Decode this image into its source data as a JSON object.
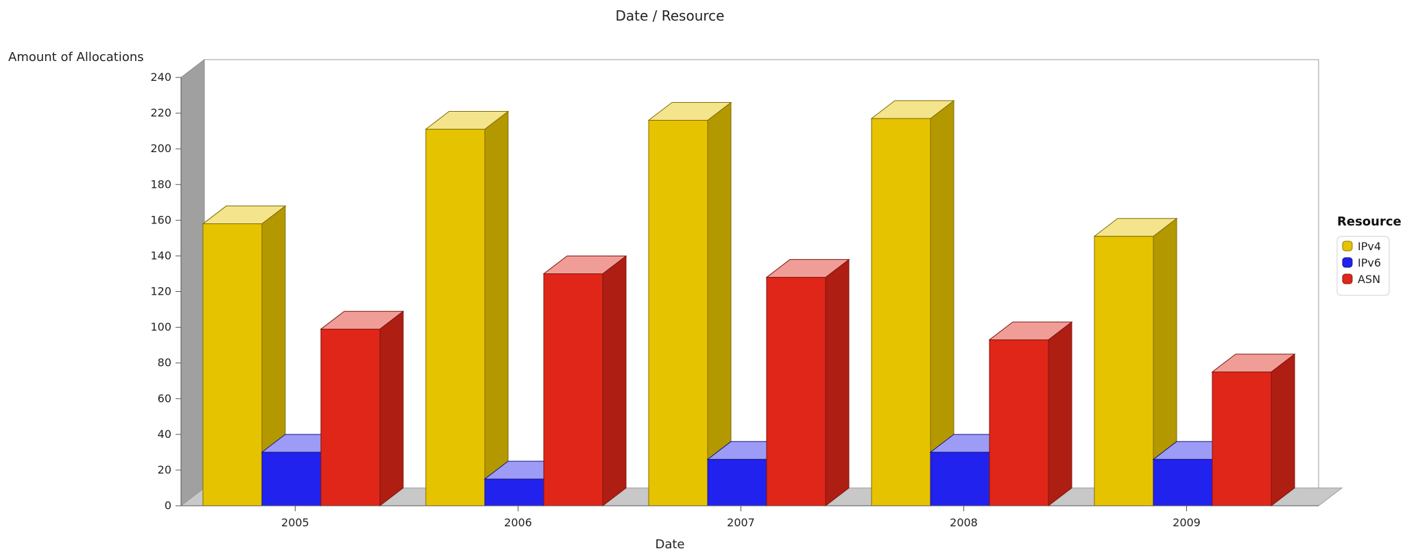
{
  "chart_data": {
    "type": "bar",
    "title": "Date / Resource",
    "xlabel": "Date",
    "ylabel": "Amount of Allocations",
    "categories": [
      "2005",
      "2006",
      "2007",
      "2008",
      "2009"
    ],
    "series": [
      {
        "name": "IPv4",
        "color": "#e6c300",
        "values": [
          158,
          211,
          216,
          217,
          151
        ]
      },
      {
        "name": "IPv6",
        "color": "#2222ee",
        "values": [
          30,
          15,
          26,
          30,
          26
        ]
      },
      {
        "name": "ASN",
        "color": "#e02618",
        "values": [
          99,
          130,
          128,
          93,
          75
        ]
      }
    ],
    "ylim": [
      0,
      240
    ],
    "yticks": [
      0,
      20,
      40,
      60,
      80,
      100,
      120,
      140,
      160,
      180,
      200,
      220,
      240
    ],
    "grid": false,
    "style_3d": true,
    "legend": {
      "title": "Resource",
      "position": "right"
    }
  }
}
